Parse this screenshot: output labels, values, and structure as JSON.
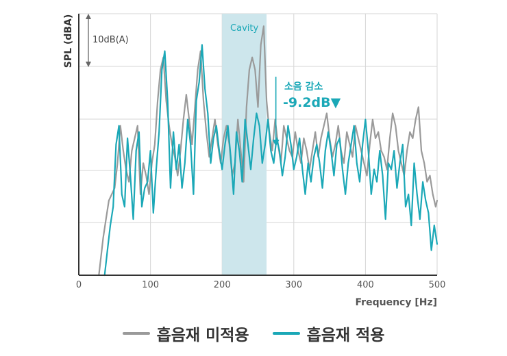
{
  "chart_data": {
    "type": "line",
    "title": "",
    "xlabel": "Frequency [Hz]",
    "ylabel": "SPL (dBA)",
    "xlim": [
      0,
      500
    ],
    "ylim": [
      0,
      42
    ],
    "x_ticks": [
      "0",
      "100",
      "200",
      "300",
      "400",
      "500"
    ],
    "y_scale_note": "10dB(A)",
    "grid": true,
    "legend_position": "bottom",
    "highlight_band": {
      "label": "Cavity",
      "x_range": [
        200,
        262
      ]
    },
    "annotation": {
      "label": "소음 감소",
      "value": "-9.2dB▼",
      "x": 275
    },
    "colors": {
      "untreated": "#9a9a9a",
      "treated": "#1ba8b7",
      "cavity_band": "#cde6ec",
      "axis": "#333333",
      "grid": "#d6d6d6"
    },
    "series": [
      {
        "name": "흡음재 미적용",
        "x": [
          28,
          34,
          38,
          42,
          46,
          50,
          54,
          58,
          62,
          66,
          70,
          74,
          78,
          82,
          86,
          90,
          94,
          98,
          102,
          106,
          110,
          114,
          118,
          122,
          126,
          130,
          134,
          138,
          142,
          146,
          150,
          154,
          158,
          162,
          166,
          170,
          174,
          178,
          182,
          186,
          190,
          194,
          198,
          202,
          206,
          210,
          214,
          218,
          222,
          226,
          230,
          234,
          238,
          242,
          246,
          250,
          254,
          258,
          262,
          266,
          270,
          274,
          278,
          282,
          286,
          290,
          294,
          298,
          302,
          306,
          310,
          314,
          318,
          322,
          326,
          330,
          334,
          338,
          342,
          346,
          350,
          354,
          358,
          362,
          366,
          370,
          374,
          378,
          382,
          386,
          390,
          394,
          398,
          402,
          406,
          410,
          414,
          418,
          422,
          426,
          430,
          434,
          438,
          442,
          446,
          450,
          454,
          458,
          462,
          466,
          470,
          474,
          478,
          482,
          486,
          490,
          494,
          498,
          500
        ],
        "y": [
          0,
          6,
          9,
          12,
          13,
          14,
          18,
          24,
          20,
          17,
          15,
          20,
          22,
          24,
          13,
          18,
          16,
          13,
          18,
          21,
          28,
          33,
          35,
          28,
          24,
          21,
          19,
          16,
          20,
          25,
          29,
          25,
          21,
          27,
          33,
          36,
          28,
          23,
          19,
          22,
          25,
          21,
          18,
          22,
          24,
          21,
          16,
          18,
          25,
          20,
          15,
          27,
          33,
          35,
          33,
          27,
          37,
          40,
          28,
          23,
          20,
          25,
          21,
          18,
          24,
          22,
          20,
          19,
          23,
          20,
          18,
          22,
          20,
          17,
          20,
          23,
          19,
          22,
          24,
          26,
          22,
          19,
          21,
          24,
          20,
          18,
          23,
          21,
          19,
          24,
          22,
          20,
          18,
          16,
          21,
          25,
          22,
          23,
          20,
          19,
          17,
          22,
          26,
          24,
          20,
          18,
          16,
          20,
          23,
          22,
          25,
          27,
          20,
          18,
          15,
          16,
          13,
          11,
          12
        ]
      },
      {
        "name": "흡음재 적용",
        "x": [
          36,
          40,
          44,
          48,
          52,
          56,
          60,
          64,
          68,
          72,
          76,
          80,
          84,
          88,
          92,
          96,
          100,
          104,
          108,
          112,
          116,
          120,
          124,
          128,
          132,
          136,
          140,
          144,
          148,
          152,
          156,
          160,
          164,
          168,
          172,
          176,
          180,
          184,
          188,
          192,
          196,
          200,
          204,
          208,
          212,
          216,
          220,
          224,
          228,
          232,
          236,
          240,
          244,
          248,
          252,
          256,
          260,
          264,
          268,
          272,
          276,
          280,
          284,
          288,
          292,
          296,
          300,
          304,
          308,
          312,
          316,
          320,
          324,
          328,
          332,
          336,
          340,
          344,
          348,
          352,
          356,
          360,
          364,
          368,
          372,
          376,
          380,
          384,
          388,
          392,
          396,
          400,
          404,
          408,
          412,
          416,
          420,
          424,
          428,
          432,
          436,
          440,
          444,
          448,
          452,
          456,
          460,
          464,
          468,
          472,
          476,
          480,
          484,
          488,
          492,
          496,
          500
        ],
        "y": [
          0,
          4,
          8,
          11,
          21,
          24,
          13,
          11,
          22,
          16,
          9,
          20,
          23,
          11,
          14,
          15,
          20,
          10,
          17,
          23,
          33,
          36,
          28,
          14,
          23,
          17,
          21,
          14,
          18,
          25,
          21,
          13,
          28,
          31,
          37,
          30,
          26,
          18,
          22,
          24,
          20,
          17,
          21,
          24,
          19,
          13,
          23,
          20,
          15,
          25,
          21,
          17,
          22,
          26,
          24,
          18,
          21,
          25,
          20,
          18,
          22,
          20,
          16,
          19,
          24,
          21,
          17,
          19,
          22,
          17,
          13,
          18,
          15,
          19,
          21,
          18,
          14,
          20,
          23,
          20,
          16,
          21,
          22,
          17,
          13,
          18,
          21,
          24,
          18,
          15,
          21,
          25,
          20,
          13,
          17,
          15,
          20,
          16,
          9,
          18,
          17,
          20,
          14,
          18,
          21,
          11,
          13,
          8,
          18,
          13,
          9,
          15,
          12,
          10,
          4,
          8,
          5
        ]
      }
    ]
  }
}
